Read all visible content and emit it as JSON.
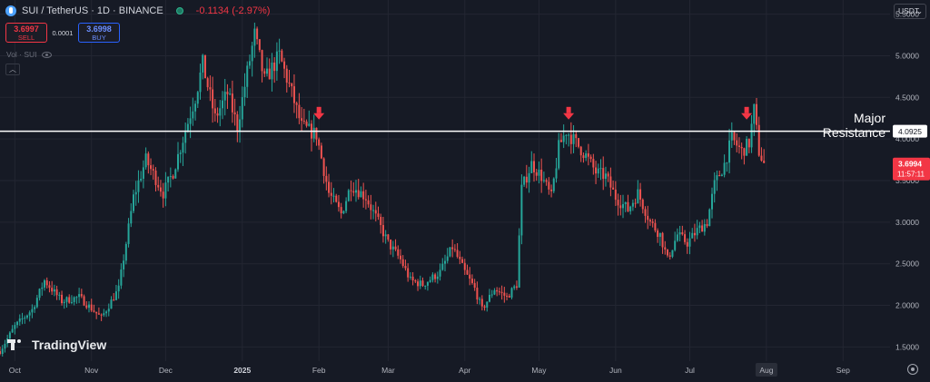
{
  "header": {
    "symbol": "SUI / TetherUS · 1D · BINANCE",
    "change": "-0.1134 (-2.97%)"
  },
  "trade": {
    "sell_price": "3.6997",
    "sell_label": "SELL",
    "spread": "0.0001",
    "buy_price": "3.6998",
    "buy_label": "BUY"
  },
  "volume_label": "Vol · SUI",
  "currency_selector": "USDT",
  "logo_text": "TradingView",
  "colors": {
    "background": "#161a25",
    "up": "#26a69a",
    "down": "#ef5350",
    "resistance": "#ffffff",
    "arrow": "#f23645"
  },
  "icons": {
    "symbol": "sui-logo-icon",
    "status": "market-status-dot-icon",
    "visibility": "eye-icon",
    "collapse": "chevron-up-icon",
    "settings": "gear-icon",
    "annotation": "down-arrow-icon"
  },
  "chart_data": {
    "type": "candlestick",
    "y_ticks": [
      "5.5000",
      "5.0000",
      "4.5000",
      "4.0000",
      "3.5000",
      "3.0000",
      "2.5000",
      "2.0000",
      "1.5000"
    ],
    "ylim": [
      1.33,
      5.67
    ],
    "x_range": [
      "2024-09-25",
      "2025-09-20"
    ],
    "x_ticks": [
      {
        "label": "Oct",
        "date": "2024-10-01"
      },
      {
        "label": "Nov",
        "date": "2024-11-01"
      },
      {
        "label": "Dec",
        "date": "2024-12-01"
      },
      {
        "label": "2025",
        "date": "2025-01-01",
        "bold": true
      },
      {
        "label": "Feb",
        "date": "2025-02-01"
      },
      {
        "label": "Mar",
        "date": "2025-03-01"
      },
      {
        "label": "Apr",
        "date": "2025-04-01"
      },
      {
        "label": "May",
        "date": "2025-05-01"
      },
      {
        "label": "Jun",
        "date": "2025-06-01"
      },
      {
        "label": "Jul",
        "date": "2025-07-01"
      },
      {
        "label": "Aug",
        "date": "2025-08-01",
        "highlight": true
      },
      {
        "label": "Sep",
        "date": "2025-09-01"
      }
    ],
    "price_path": [
      [
        "2024-09-25",
        1.45
      ],
      [
        "2024-10-01",
        1.75
      ],
      [
        "2024-10-08",
        1.95
      ],
      [
        "2024-10-13",
        2.3
      ],
      [
        "2024-10-20",
        2.05
      ],
      [
        "2024-10-27",
        2.1
      ],
      [
        "2024-11-05",
        1.85
      ],
      [
        "2024-11-12",
        2.2
      ],
      [
        "2024-11-18",
        3.3
      ],
      [
        "2024-11-23",
        3.75
      ],
      [
        "2024-11-30",
        3.35
      ],
      [
        "2024-12-04",
        3.6
      ],
      [
        "2024-12-09",
        4.1
      ],
      [
        "2024-12-13",
        4.5
      ],
      [
        "2024-12-16",
        4.9
      ],
      [
        "2024-12-21",
        4.25
      ],
      [
        "2024-12-26",
        4.55
      ],
      [
        "2024-12-30",
        4.15
      ],
      [
        "2025-01-03",
        4.8
      ],
      [
        "2025-01-06",
        5.25
      ],
      [
        "2025-01-10",
        4.7
      ],
      [
        "2025-01-16",
        5.0
      ],
      [
        "2025-01-21",
        4.55
      ],
      [
        "2025-01-25",
        4.15
      ],
      [
        "2025-01-31",
        4.05
      ],
      [
        "2025-02-05",
        3.35
      ],
      [
        "2025-02-10",
        3.1
      ],
      [
        "2025-02-14",
        3.45
      ],
      [
        "2025-02-20",
        3.3
      ],
      [
        "2025-02-25",
        3.0
      ],
      [
        "2025-03-01",
        2.75
      ],
      [
        "2025-03-06",
        2.55
      ],
      [
        "2025-03-10",
        2.3
      ],
      [
        "2025-03-15",
        2.25
      ],
      [
        "2025-03-22",
        2.4
      ],
      [
        "2025-03-27",
        2.7
      ],
      [
        "2025-04-01",
        2.4
      ],
      [
        "2025-04-05",
        2.2
      ],
      [
        "2025-04-08",
        1.95
      ],
      [
        "2025-04-13",
        2.2
      ],
      [
        "2025-04-18",
        2.1
      ],
      [
        "2025-04-22",
        2.25
      ],
      [
        "2025-04-24",
        3.4
      ],
      [
        "2025-04-28",
        3.7
      ],
      [
        "2025-05-02",
        3.55
      ],
      [
        "2025-05-06",
        3.3
      ],
      [
        "2025-05-09",
        3.9
      ],
      [
        "2025-05-12",
        4.1
      ],
      [
        "2025-05-16",
        3.95
      ],
      [
        "2025-05-20",
        3.8
      ],
      [
        "2025-05-24",
        3.6
      ],
      [
        "2025-05-28",
        3.55
      ],
      [
        "2025-06-01",
        3.3
      ],
      [
        "2025-06-06",
        3.15
      ],
      [
        "2025-06-10",
        3.35
      ],
      [
        "2025-06-15",
        3.0
      ],
      [
        "2025-06-19",
        2.85
      ],
      [
        "2025-06-22",
        2.55
      ],
      [
        "2025-06-26",
        2.85
      ],
      [
        "2025-06-30",
        2.75
      ],
      [
        "2025-07-04",
        2.9
      ],
      [
        "2025-07-08",
        3.0
      ],
      [
        "2025-07-11",
        3.45
      ],
      [
        "2025-07-15",
        3.7
      ],
      [
        "2025-07-18",
        4.0
      ],
      [
        "2025-07-22",
        3.85
      ],
      [
        "2025-07-25",
        3.95
      ],
      [
        "2025-07-27",
        4.35
      ],
      [
        "2025-07-29",
        3.85
      ],
      [
        "2025-07-31",
        3.7
      ]
    ],
    "last_price": "3.6994",
    "countdown": "11:57:11",
    "resistance": {
      "value": 4.0925,
      "label": "4.0925",
      "annotation_line1": "Major",
      "annotation_line2": "Resistance"
    },
    "arrows": [
      {
        "date": "2025-02-01",
        "price": 4.2
      },
      {
        "date": "2025-05-13",
        "price": 4.2
      },
      {
        "date": "2025-07-24",
        "price": 4.2
      }
    ]
  }
}
